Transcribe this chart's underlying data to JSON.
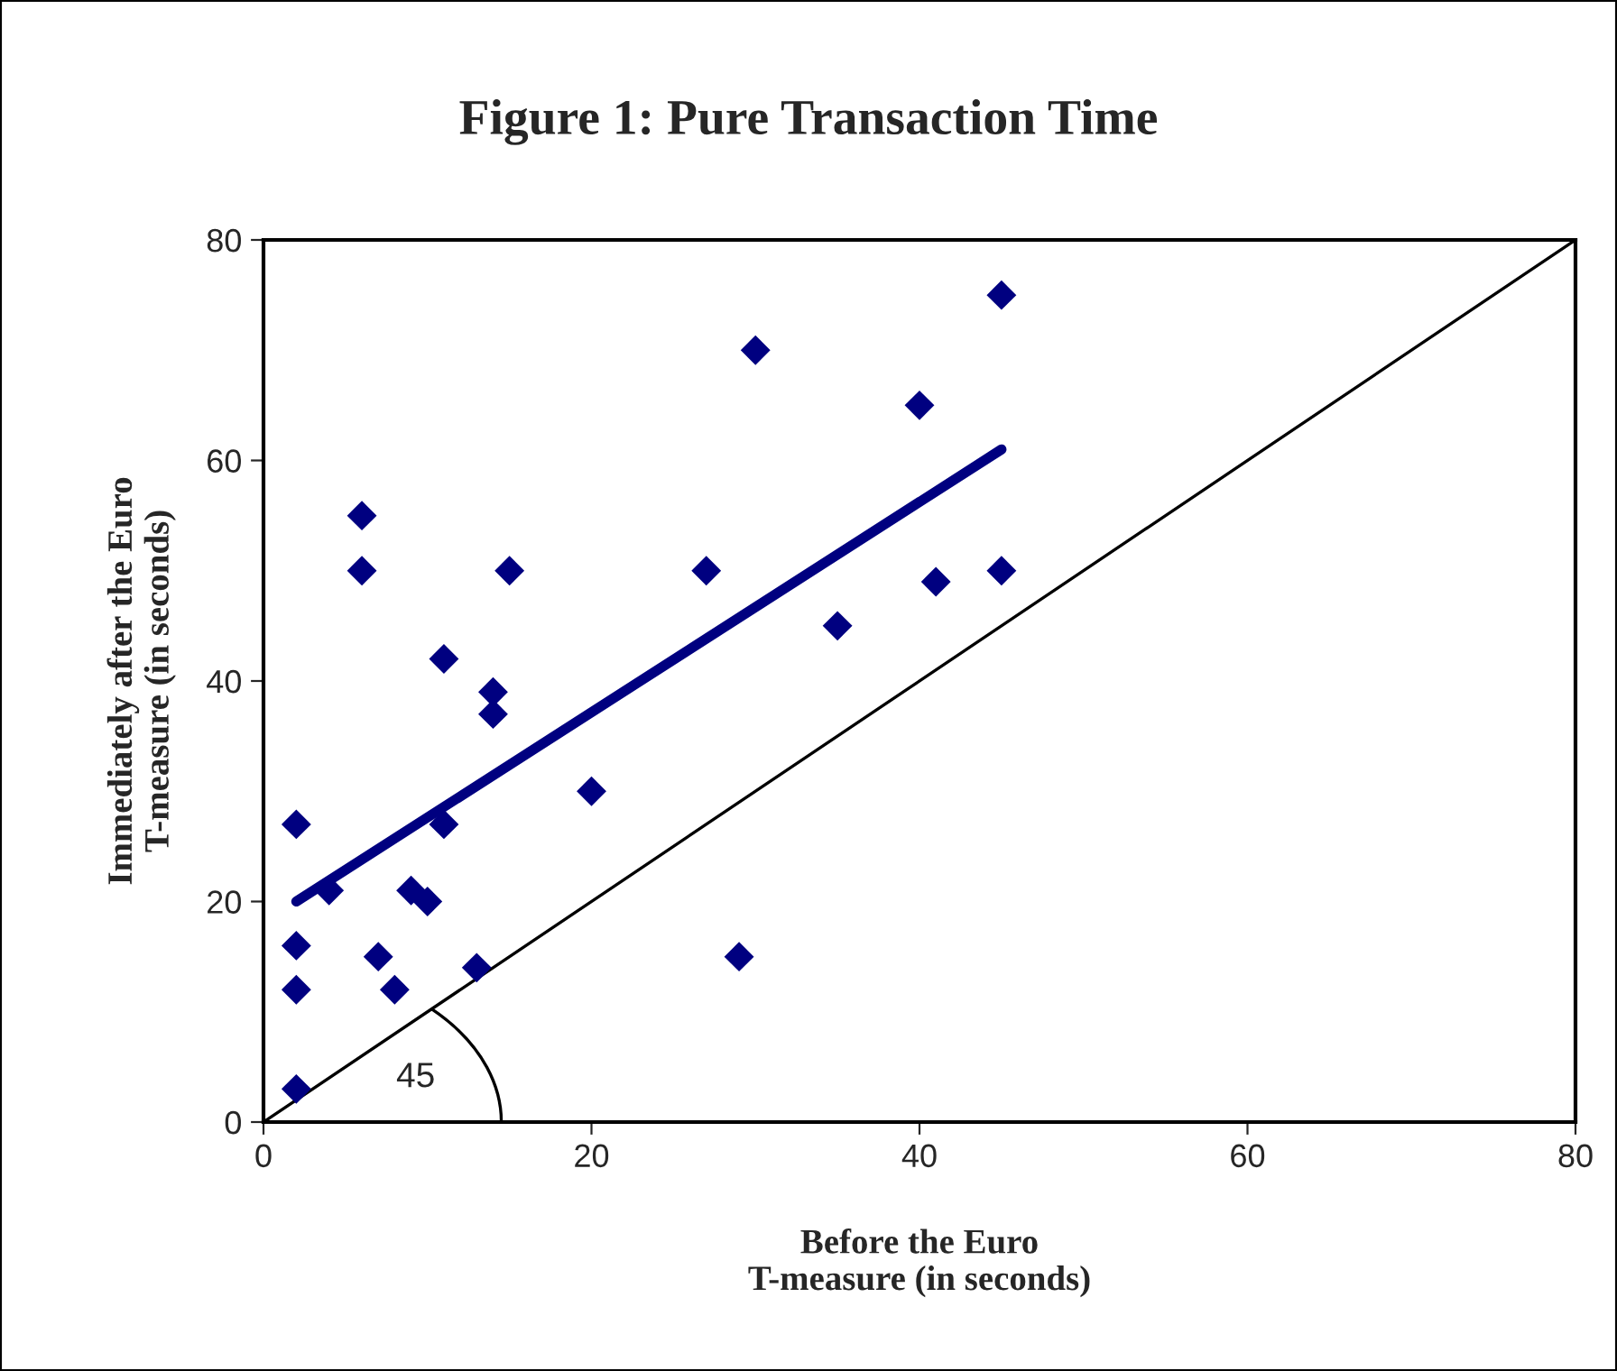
{
  "chart_data": {
    "type": "scatter",
    "title": "Figure 1: Pure Transaction Time",
    "xlabel": "Before the Euro\nT-measure (in seconds)",
    "ylabel": "Immediately after the Euro\nT-measure (in seconds)",
    "series": [
      {
        "color": "#000080",
        "marker": "diamond",
        "x": [
          2,
          2,
          2,
          2,
          4,
          6,
          6,
          7,
          8,
          9,
          10,
          11,
          11,
          13,
          14,
          14,
          15,
          20,
          27,
          29,
          30,
          35,
          40,
          41,
          45,
          45
        ],
        "values": [
          27,
          16,
          12,
          3,
          21,
          55,
          50,
          15,
          12,
          21,
          20,
          42,
          27,
          14,
          39,
          37,
          50,
          30,
          50,
          15,
          70,
          45,
          65,
          49,
          75,
          50
        ]
      },
      {
        "type": "line",
        "color": "#000080",
        "x": [
          2,
          45
        ],
        "values": [
          20,
          61
        ]
      },
      {
        "type": "line",
        "color": "#000000",
        "x": [
          0,
          80
        ],
        "values": [
          0,
          80
        ]
      }
    ],
    "annotations": [
      "45"
    ],
    "xlim": [
      0,
      80
    ],
    "ylim": [
      0,
      80
    ],
    "xticks": [
      0,
      20,
      40,
      60,
      80
    ],
    "yticks": [
      0,
      20,
      40,
      60,
      80
    ],
    "grid": false,
    "legend": false
  }
}
